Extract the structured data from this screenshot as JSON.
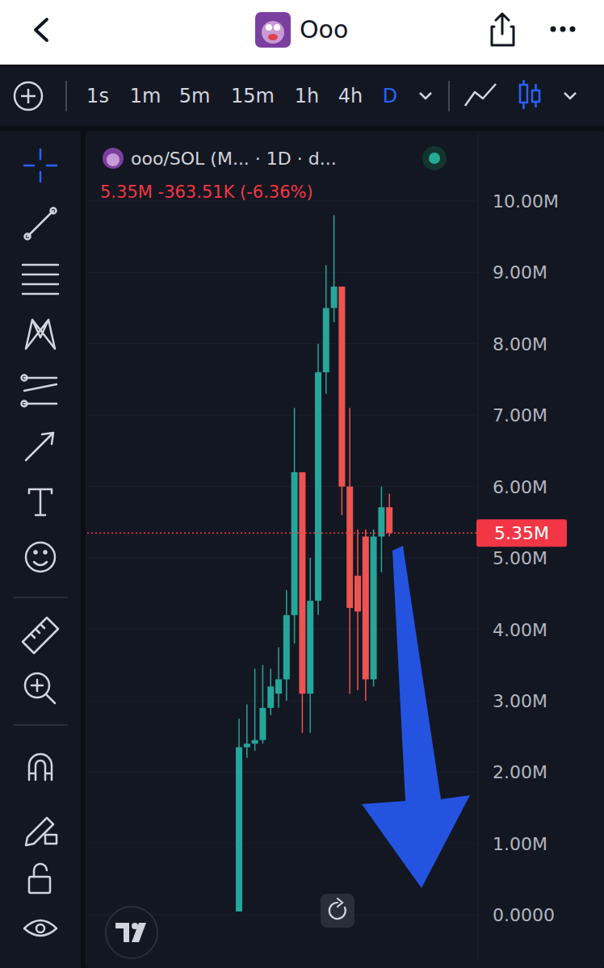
{
  "header": {
    "title": "Ooo"
  },
  "toolbar": {
    "timeframes": [
      "1s",
      "1m",
      "5m",
      "15m",
      "1h",
      "4h",
      "D"
    ],
    "active": "D"
  },
  "chart_data": {
    "type": "candlestick",
    "title": "ooo/SOL (M... · 1D · d...",
    "subtitle": "5.35M  -363.51K (-6.36%)",
    "categories": [
      null,
      null,
      null,
      null,
      null,
      null,
      null,
      null,
      null,
      null,
      null,
      null,
      null,
      null,
      null,
      null,
      null,
      null,
      null,
      null
    ],
    "open": [
      0.05,
      2.35,
      2.4,
      2.45,
      2.9,
      3.1,
      3.3,
      4.2,
      6.2,
      3.1,
      4.4,
      7.6,
      8.5,
      8.8,
      6.0,
      4.75,
      5.3,
      3.3,
      5.3,
      5.71
    ],
    "high": [
      2.75,
      2.95,
      3.45,
      3.5,
      3.45,
      3.75,
      4.55,
      7.1,
      6.2,
      5.0,
      8.0,
      9.1,
      9.8,
      8.8,
      7.1,
      5.4,
      5.4,
      5.4,
      6.0,
      5.9
    ],
    "low": [
      0.05,
      2.2,
      2.3,
      2.4,
      2.8,
      2.9,
      3.0,
      3.8,
      2.55,
      2.55,
      4.2,
      7.3,
      8.3,
      5.6,
      3.1,
      3.15,
      3.0,
      3.2,
      4.8,
      5.3
    ],
    "close": [
      2.35,
      2.4,
      2.45,
      2.9,
      3.2,
      3.3,
      4.2,
      6.2,
      3.1,
      4.4,
      7.6,
      8.5,
      8.8,
      6.0,
      4.3,
      4.25,
      3.3,
      5.3,
      5.71,
      5.35
    ],
    "last_price": {
      "value": 5.35,
      "label": "5.35M"
    },
    "ylim": [
      -0.64,
      10.97
    ],
    "yticks": [
      {
        "value": 0,
        "label": "0.0000"
      },
      {
        "value": 1,
        "label": "1.00M"
      },
      {
        "value": 2,
        "label": "2.00M"
      },
      {
        "value": 3,
        "label": "3.00M"
      },
      {
        "value": 4,
        "label": "4.00M"
      },
      {
        "value": 5,
        "label": "5.00M"
      },
      {
        "value": 6,
        "label": "6.00M"
      },
      {
        "value": 7,
        "label": "7.00M"
      },
      {
        "value": 8,
        "label": "8.00M"
      },
      {
        "value": 9,
        "label": "9.00M"
      },
      {
        "value": 10,
        "label": "10.00M"
      }
    ],
    "grid": true,
    "tick_labels": "y"
  }
}
